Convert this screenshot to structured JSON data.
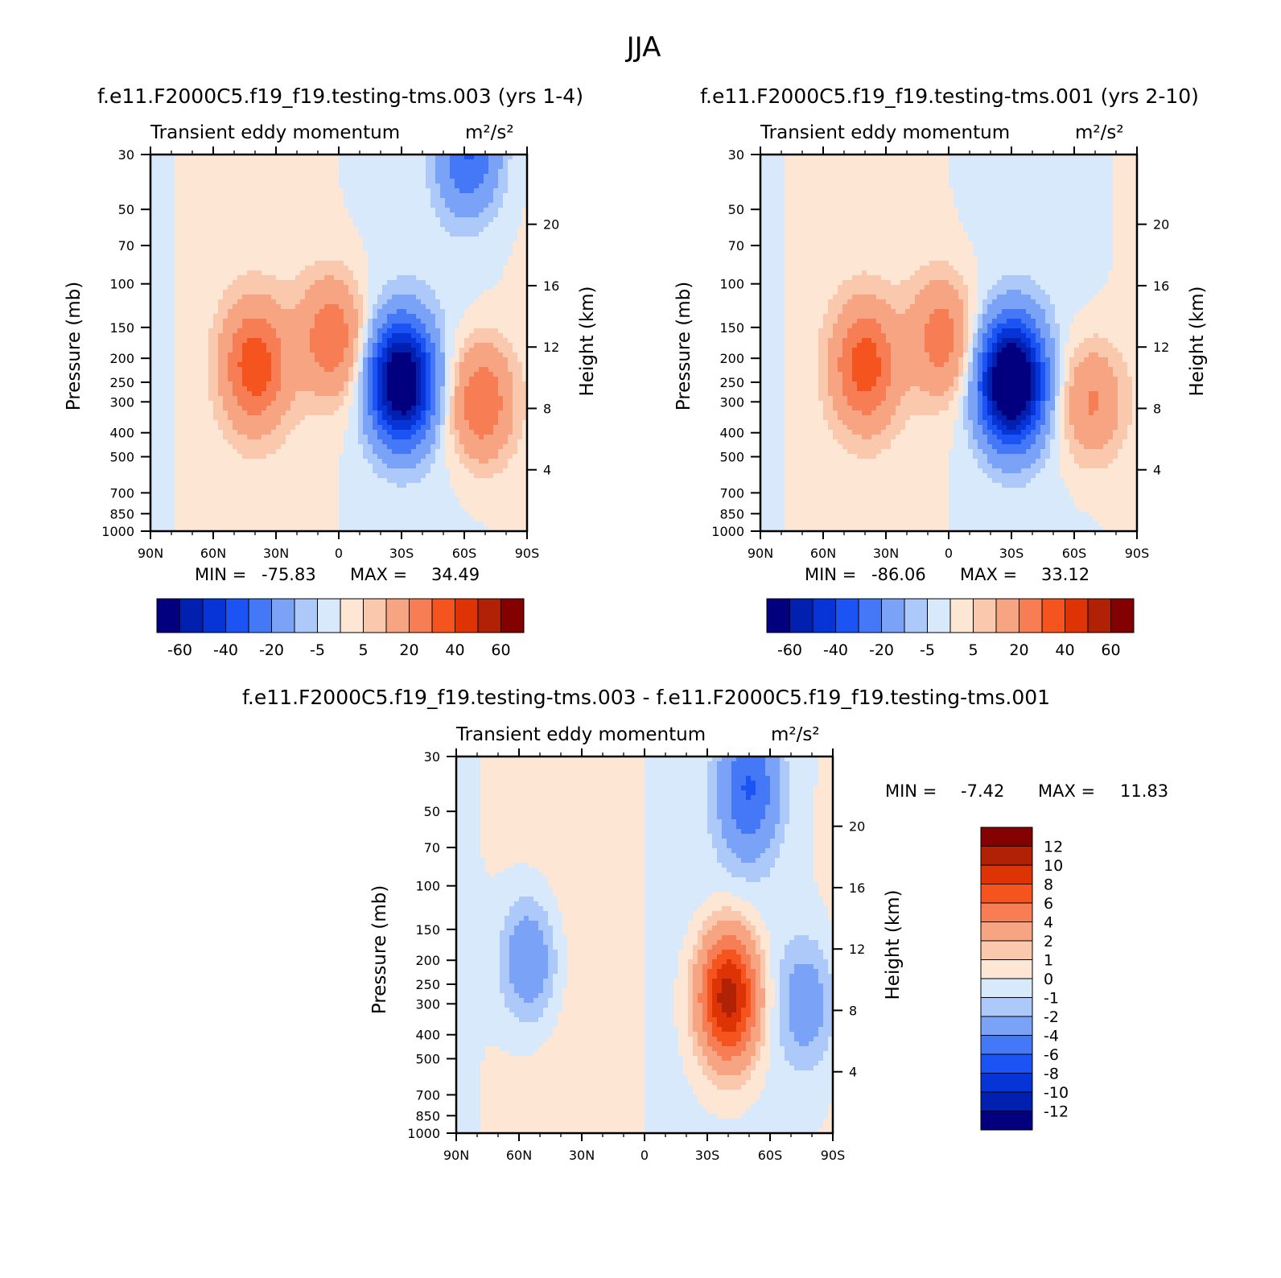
{
  "figure_title": "JJA",
  "chart_data": [
    {
      "type": "heatmap",
      "title": "f.e11.F2000C5.f19_f19.testing-tms.003 (yrs 1-4)",
      "variable": "Transient eddy momentum",
      "units": "m²/s²",
      "x_ticks": [
        "90N",
        "60N",
        "30N",
        "0",
        "30S",
        "60S",
        "90S"
      ],
      "y_ticks": [
        "30",
        "50",
        "70",
        "100",
        "150",
        "200",
        "250",
        "300",
        "400",
        "500",
        "700",
        "850",
        "1000"
      ],
      "y_label": "Pressure (mb)",
      "y2_ticks": [
        "20",
        "16",
        "12",
        "8",
        "4"
      ],
      "y2_label": "Height (km)",
      "stats": {
        "min_label": "MIN =",
        "min": "-75.83",
        "max_label": "MAX =",
        "max": "34.49"
      },
      "colorbar": {
        "orientation": "horizontal",
        "colors": [
          "#02007f",
          "#0220b0",
          "#0634d6",
          "#1c53f5",
          "#4478f7",
          "#7aa3f8",
          "#adc9f9",
          "#d8e9fc",
          "#fde6d4",
          "#f9c8ad",
          "#f7a482",
          "#f77e54",
          "#f5541f",
          "#de3305",
          "#b12105",
          "#830100"
        ],
        "labels": [
          "-60",
          "-40",
          "-20",
          "-5",
          "5",
          "20",
          "40",
          "60"
        ]
      },
      "features": [
        {
          "lat": 40,
          "p": 215,
          "value": 34.49
        },
        {
          "lat": 3,
          "p": 165,
          "value": 28
        },
        {
          "lat": -30,
          "p": 250,
          "value": -75.83
        },
        {
          "lat": -68,
          "p": 300,
          "value": 30
        },
        {
          "lat": -62,
          "p": 30,
          "value": -30
        }
      ]
    },
    {
      "type": "heatmap",
      "title": "f.e11.F2000C5.f19_f19.testing-tms.001 (yrs 2-10)",
      "variable": "Transient eddy momentum",
      "units": "m²/s²",
      "x_ticks": [
        "90N",
        "60N",
        "30N",
        "0",
        "30S",
        "60S",
        "90S"
      ],
      "y_ticks": [
        "30",
        "50",
        "70",
        "100",
        "150",
        "200",
        "250",
        "300",
        "400",
        "500",
        "700",
        "850",
        "1000"
      ],
      "y_label": "Pressure (mb)",
      "y2_ticks": [
        "20",
        "16",
        "12",
        "8",
        "4"
      ],
      "y2_label": "Height (km)",
      "stats": {
        "min_label": "MIN =",
        "min": "-86.06",
        "max_label": "MAX =",
        "max": "33.12"
      },
      "colorbar": {
        "orientation": "horizontal",
        "colors": [
          "#02007f",
          "#0220b0",
          "#0634d6",
          "#1c53f5",
          "#4478f7",
          "#7aa3f8",
          "#adc9f9",
          "#d8e9fc",
          "#fde6d4",
          "#f9c8ad",
          "#f7a482",
          "#f77e54",
          "#f5541f",
          "#de3305",
          "#b12105",
          "#830100"
        ],
        "labels": [
          "-60",
          "-40",
          "-20",
          "-5",
          "5",
          "20",
          "40",
          "60"
        ]
      },
      "features": [
        {
          "lat": 40,
          "p": 215,
          "value": 33.12
        },
        {
          "lat": 3,
          "p": 165,
          "value": 25
        },
        {
          "lat": -30,
          "p": 250,
          "value": -86.06
        },
        {
          "lat": -68,
          "p": 300,
          "value": 22
        }
      ]
    },
    {
      "type": "heatmap",
      "title": "f.e11.F2000C5.f19_f19.testing-tms.003 - f.e11.F2000C5.f19_f19.testing-tms.001",
      "variable": "Transient eddy momentum",
      "units": "m²/s²",
      "x_ticks": [
        "90N",
        "60N",
        "30N",
        "0",
        "30S",
        "60S",
        "90S"
      ],
      "y_ticks": [
        "30",
        "50",
        "70",
        "100",
        "150",
        "200",
        "250",
        "300",
        "400",
        "500",
        "700",
        "850",
        "1000"
      ],
      "y_label": "Pressure (mb)",
      "y2_ticks": [
        "20",
        "16",
        "12",
        "8",
        "4"
      ],
      "y2_label": "Height (km)",
      "stats": {
        "min_label": "MIN =",
        "min": "-7.42",
        "max_label": "MAX =",
        "max": "11.83"
      },
      "colorbar": {
        "orientation": "vertical",
        "colors": [
          "#830100",
          "#b12105",
          "#de3305",
          "#f5541f",
          "#f77e54",
          "#f7a482",
          "#f9c8ad",
          "#fde6d4",
          "#d8e9fc",
          "#adc9f9",
          "#7aa3f8",
          "#4478f7",
          "#1c53f5",
          "#0634d6",
          "#0220b0",
          "#02007f"
        ],
        "labels": [
          "12",
          "10",
          "8",
          "6",
          "4",
          "2",
          "1",
          "0",
          "-1",
          "-2",
          "-4",
          "-6",
          "-8",
          "-10",
          "-12"
        ]
      },
      "features": [
        {
          "lat": -40,
          "p": 280,
          "value": 11.83
        },
        {
          "lat": -50,
          "p": 40,
          "value": -6
        },
        {
          "lat": 55,
          "p": 200,
          "value": -4
        },
        {
          "lat": -78,
          "p": 300,
          "value": -3
        }
      ]
    }
  ]
}
